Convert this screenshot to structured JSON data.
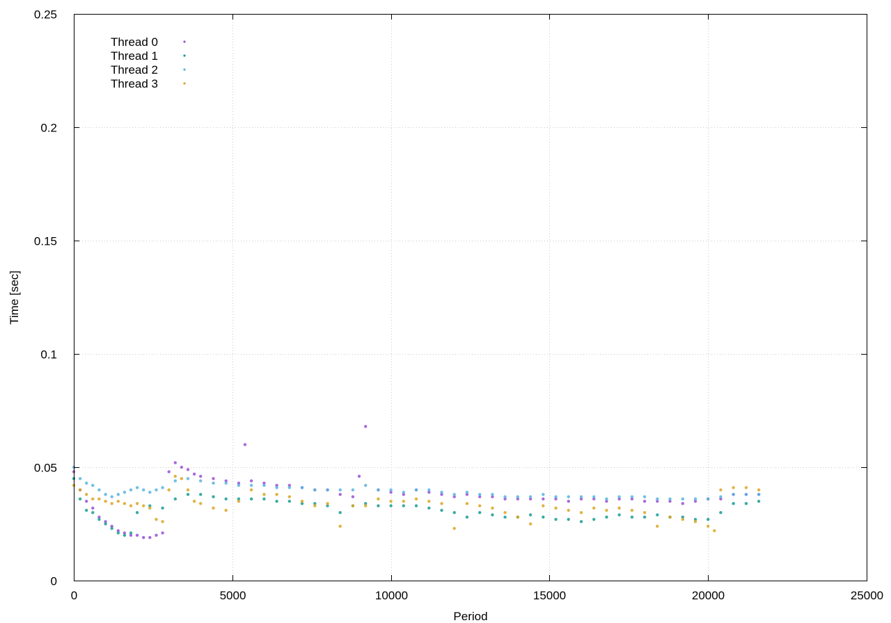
{
  "chart_data": {
    "type": "scatter",
    "title": "",
    "xlabel": "Period",
    "ylabel": "Time [sec]",
    "xlim": [
      0,
      25000
    ],
    "ylim": [
      0,
      0.25
    ],
    "xticks": [
      0,
      5000,
      10000,
      15000,
      20000,
      25000
    ],
    "xtick_labels": [
      "0",
      "5000",
      "10000",
      "15000",
      "20000",
      "25000"
    ],
    "yticks": [
      0,
      0.05,
      0.1,
      0.15,
      0.2,
      0.25
    ],
    "ytick_labels": [
      "0",
      "0.05",
      "0.1",
      "0.15",
      "0.2",
      "0.25"
    ],
    "grid": true,
    "legend_position": "top-left",
    "series": [
      {
        "name": "Thread 0",
        "color": "#9b4fd6",
        "points": [
          [
            0,
            0.048
          ],
          [
            200,
            0.04
          ],
          [
            400,
            0.035
          ],
          [
            600,
            0.032
          ],
          [
            800,
            0.028
          ],
          [
            1000,
            0.026
          ],
          [
            1200,
            0.024
          ],
          [
            1400,
            0.022
          ],
          [
            1600,
            0.021
          ],
          [
            1800,
            0.02
          ],
          [
            2000,
            0.02
          ],
          [
            2200,
            0.019
          ],
          [
            2400,
            0.019
          ],
          [
            2600,
            0.02
          ],
          [
            2800,
            0.021
          ],
          [
            3000,
            0.048
          ],
          [
            3200,
            0.052
          ],
          [
            3400,
            0.05
          ],
          [
            3600,
            0.049
          ],
          [
            3800,
            0.047
          ],
          [
            4000,
            0.046
          ],
          [
            4400,
            0.045
          ],
          [
            4800,
            0.044
          ],
          [
            5200,
            0.043
          ],
          [
            5400,
            0.06
          ],
          [
            5600,
            0.044
          ],
          [
            6000,
            0.043
          ],
          [
            6400,
            0.042
          ],
          [
            6800,
            0.042
          ],
          [
            7200,
            0.041
          ],
          [
            7600,
            0.04
          ],
          [
            8000,
            0.04
          ],
          [
            8400,
            0.038
          ],
          [
            8800,
            0.037
          ],
          [
            9000,
            0.046
          ],
          [
            9200,
            0.068
          ],
          [
            9600,
            0.04
          ],
          [
            10000,
            0.039
          ],
          [
            10400,
            0.038
          ],
          [
            10800,
            0.04
          ],
          [
            11200,
            0.039
          ],
          [
            11600,
            0.038
          ],
          [
            12000,
            0.037
          ],
          [
            12400,
            0.038
          ],
          [
            12800,
            0.037
          ],
          [
            13200,
            0.037
          ],
          [
            13600,
            0.036
          ],
          [
            14000,
            0.036
          ],
          [
            14400,
            0.036
          ],
          [
            14800,
            0.036
          ],
          [
            15200,
            0.036
          ],
          [
            15600,
            0.035
          ],
          [
            16000,
            0.036
          ],
          [
            16400,
            0.036
          ],
          [
            16800,
            0.035
          ],
          [
            17200,
            0.036
          ],
          [
            17600,
            0.036
          ],
          [
            18000,
            0.035
          ],
          [
            18400,
            0.035
          ],
          [
            18800,
            0.035
          ],
          [
            19200,
            0.034
          ],
          [
            19600,
            0.035
          ],
          [
            20000,
            0.036
          ],
          [
            20400,
            0.036
          ],
          [
            20800,
            0.038
          ],
          [
            21200,
            0.038
          ],
          [
            21600,
            0.038
          ]
        ]
      },
      {
        "name": "Thread 1",
        "color": "#169c93",
        "points": [
          [
            0,
            0.045
          ],
          [
            200,
            0.036
          ],
          [
            400,
            0.031
          ],
          [
            600,
            0.03
          ],
          [
            800,
            0.027
          ],
          [
            1000,
            0.025
          ],
          [
            1200,
            0.023
          ],
          [
            1400,
            0.021
          ],
          [
            1600,
            0.02
          ],
          [
            1800,
            0.021
          ],
          [
            2000,
            0.03
          ],
          [
            2400,
            0.033
          ],
          [
            2800,
            0.032
          ],
          [
            3200,
            0.036
          ],
          [
            3600,
            0.038
          ],
          [
            4000,
            0.038
          ],
          [
            4400,
            0.037
          ],
          [
            4800,
            0.036
          ],
          [
            5200,
            0.036
          ],
          [
            5600,
            0.036
          ],
          [
            6000,
            0.036
          ],
          [
            6400,
            0.035
          ],
          [
            6800,
            0.035
          ],
          [
            7200,
            0.034
          ],
          [
            7600,
            0.034
          ],
          [
            8000,
            0.033
          ],
          [
            8400,
            0.03
          ],
          [
            8800,
            0.033
          ],
          [
            9200,
            0.034
          ],
          [
            9600,
            0.033
          ],
          [
            10000,
            0.033
          ],
          [
            10400,
            0.033
          ],
          [
            10800,
            0.033
          ],
          [
            11200,
            0.032
          ],
          [
            11600,
            0.031
          ],
          [
            12000,
            0.03
          ],
          [
            12400,
            0.028
          ],
          [
            12800,
            0.03
          ],
          [
            13200,
            0.029
          ],
          [
            13600,
            0.028
          ],
          [
            14000,
            0.028
          ],
          [
            14400,
            0.029
          ],
          [
            14800,
            0.028
          ],
          [
            15200,
            0.027
          ],
          [
            15600,
            0.027
          ],
          [
            16000,
            0.026
          ],
          [
            16400,
            0.027
          ],
          [
            16800,
            0.028
          ],
          [
            17200,
            0.029
          ],
          [
            17600,
            0.028
          ],
          [
            18000,
            0.028
          ],
          [
            18400,
            0.029
          ],
          [
            18800,
            0.028
          ],
          [
            19200,
            0.028
          ],
          [
            19600,
            0.027
          ],
          [
            20000,
            0.027
          ],
          [
            20400,
            0.03
          ],
          [
            20800,
            0.034
          ],
          [
            21200,
            0.034
          ],
          [
            21600,
            0.035
          ]
        ]
      },
      {
        "name": "Thread 2",
        "color": "#56b4e0",
        "points": [
          [
            0,
            0.05
          ],
          [
            200,
            0.045
          ],
          [
            400,
            0.043
          ],
          [
            600,
            0.042
          ],
          [
            800,
            0.04
          ],
          [
            1000,
            0.038
          ],
          [
            1200,
            0.037
          ],
          [
            1400,
            0.038
          ],
          [
            1600,
            0.039
          ],
          [
            1800,
            0.04
          ],
          [
            2000,
            0.041
          ],
          [
            2200,
            0.04
          ],
          [
            2400,
            0.039
          ],
          [
            2600,
            0.04
          ],
          [
            2800,
            0.041
          ],
          [
            3200,
            0.044
          ],
          [
            3600,
            0.045
          ],
          [
            4000,
            0.044
          ],
          [
            4400,
            0.043
          ],
          [
            4800,
            0.043
          ],
          [
            5200,
            0.042
          ],
          [
            5600,
            0.042
          ],
          [
            6000,
            0.042
          ],
          [
            6400,
            0.041
          ],
          [
            6800,
            0.041
          ],
          [
            7200,
            0.041
          ],
          [
            7600,
            0.04
          ],
          [
            8000,
            0.04
          ],
          [
            8400,
            0.04
          ],
          [
            8800,
            0.04
          ],
          [
            9200,
            0.042
          ],
          [
            9600,
            0.04
          ],
          [
            10000,
            0.04
          ],
          [
            10400,
            0.039
          ],
          [
            10800,
            0.04
          ],
          [
            11200,
            0.04
          ],
          [
            11600,
            0.039
          ],
          [
            12000,
            0.038
          ],
          [
            12400,
            0.039
          ],
          [
            12800,
            0.038
          ],
          [
            13200,
            0.038
          ],
          [
            13600,
            0.037
          ],
          [
            14000,
            0.037
          ],
          [
            14400,
            0.037
          ],
          [
            14800,
            0.038
          ],
          [
            15200,
            0.037
          ],
          [
            15600,
            0.037
          ],
          [
            16000,
            0.037
          ],
          [
            16400,
            0.037
          ],
          [
            16800,
            0.036
          ],
          [
            17200,
            0.037
          ],
          [
            17600,
            0.037
          ],
          [
            18000,
            0.037
          ],
          [
            18400,
            0.036
          ],
          [
            18800,
            0.036
          ],
          [
            19200,
            0.036
          ],
          [
            19600,
            0.036
          ],
          [
            20000,
            0.036
          ],
          [
            20400,
            0.037
          ],
          [
            20800,
            0.038
          ],
          [
            21200,
            0.038
          ],
          [
            21600,
            0.038
          ]
        ]
      },
      {
        "name": "Thread 3",
        "color": "#daa520",
        "points": [
          [
            0,
            0.042
          ],
          [
            200,
            0.04
          ],
          [
            400,
            0.038
          ],
          [
            600,
            0.036
          ],
          [
            800,
            0.036
          ],
          [
            1000,
            0.035
          ],
          [
            1200,
            0.034
          ],
          [
            1400,
            0.035
          ],
          [
            1600,
            0.034
          ],
          [
            1800,
            0.033
          ],
          [
            2000,
            0.034
          ],
          [
            2200,
            0.033
          ],
          [
            2400,
            0.032
          ],
          [
            2600,
            0.027
          ],
          [
            2800,
            0.026
          ],
          [
            3000,
            0.04
          ],
          [
            3200,
            0.046
          ],
          [
            3400,
            0.045
          ],
          [
            3600,
            0.04
          ],
          [
            3800,
            0.035
          ],
          [
            4000,
            0.034
          ],
          [
            4400,
            0.032
          ],
          [
            4800,
            0.031
          ],
          [
            5200,
            0.035
          ],
          [
            5600,
            0.04
          ],
          [
            6000,
            0.038
          ],
          [
            6400,
            0.038
          ],
          [
            6800,
            0.037
          ],
          [
            7200,
            0.035
          ],
          [
            7600,
            0.033
          ],
          [
            8000,
            0.034
          ],
          [
            8400,
            0.024
          ],
          [
            8800,
            0.033
          ],
          [
            9200,
            0.033
          ],
          [
            9600,
            0.036
          ],
          [
            10000,
            0.035
          ],
          [
            10400,
            0.035
          ],
          [
            10800,
            0.036
          ],
          [
            11200,
            0.035
          ],
          [
            11600,
            0.034
          ],
          [
            12000,
            0.023
          ],
          [
            12400,
            0.034
          ],
          [
            12800,
            0.033
          ],
          [
            13200,
            0.032
          ],
          [
            13600,
            0.03
          ],
          [
            14000,
            0.028
          ],
          [
            14400,
            0.025
          ],
          [
            14800,
            0.033
          ],
          [
            15200,
            0.032
          ],
          [
            15600,
            0.031
          ],
          [
            16000,
            0.03
          ],
          [
            16400,
            0.032
          ],
          [
            16800,
            0.031
          ],
          [
            17200,
            0.032
          ],
          [
            17600,
            0.031
          ],
          [
            18000,
            0.03
          ],
          [
            18400,
            0.024
          ],
          [
            18800,
            0.028
          ],
          [
            19200,
            0.027
          ],
          [
            19600,
            0.026
          ],
          [
            20000,
            0.024
          ],
          [
            20200,
            0.022
          ],
          [
            20400,
            0.04
          ],
          [
            20800,
            0.041
          ],
          [
            21200,
            0.041
          ],
          [
            21600,
            0.04
          ]
        ]
      }
    ]
  }
}
